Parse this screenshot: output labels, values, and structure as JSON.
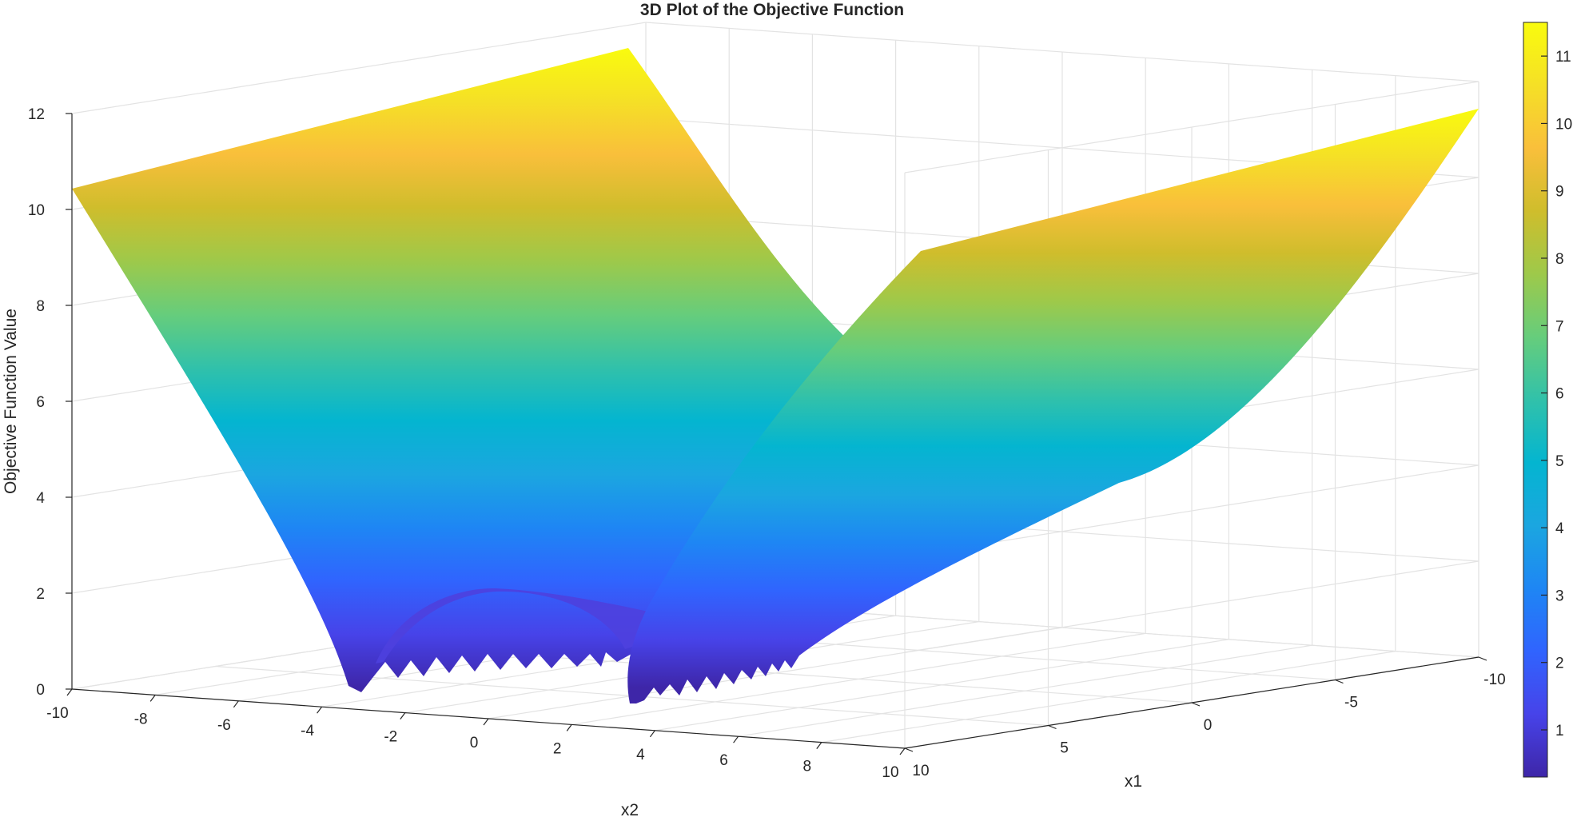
{
  "chart_data": {
    "type": "surface",
    "title": "3D Plot of the Objective Function",
    "xlabel": "x1",
    "ylabel": "x2",
    "zlabel": "Objective Function Value",
    "x1_ticks": [
      "-10",
      "-5",
      "0",
      "5",
      "10"
    ],
    "x2_ticks": [
      "-10",
      "-8",
      "-6",
      "-4",
      "-2",
      "0",
      "2",
      "4",
      "6",
      "8",
      "10"
    ],
    "z_ticks": [
      "0",
      "2",
      "4",
      "6",
      "8",
      "10",
      "12"
    ],
    "xlim": [
      -10,
      10
    ],
    "ylim": [
      -10,
      10
    ],
    "zlim": [
      0,
      12
    ],
    "grid": true,
    "colormap": "parula",
    "colorbar": {
      "range": [
        0.3,
        11.5
      ],
      "ticks": [
        "1",
        "2",
        "3",
        "4",
        "5",
        "6",
        "7",
        "8",
        "9",
        "10",
        "11"
      ]
    },
    "surface_samples": {
      "corner_values": {
        "x1=10,x2=-10": 10.5,
        "x1=-10,x2=-10": 12.0,
        "x1=-10,x2=10": 11.5,
        "x1=10,x2=10": 10.5
      },
      "minimum_value": 0.1,
      "valley_near": "x2 ≈ 4"
    }
  },
  "colors": {
    "parula": [
      "#3e26a8",
      "#4743e9",
      "#3064fe",
      "#1e86f4",
      "#1ba6e0",
      "#04b5d0",
      "#31c1aa",
      "#66cd7c",
      "#9ec94a",
      "#cfbd2c",
      "#f9bf3b",
      "#f5e026",
      "#f9fb0e"
    ]
  }
}
